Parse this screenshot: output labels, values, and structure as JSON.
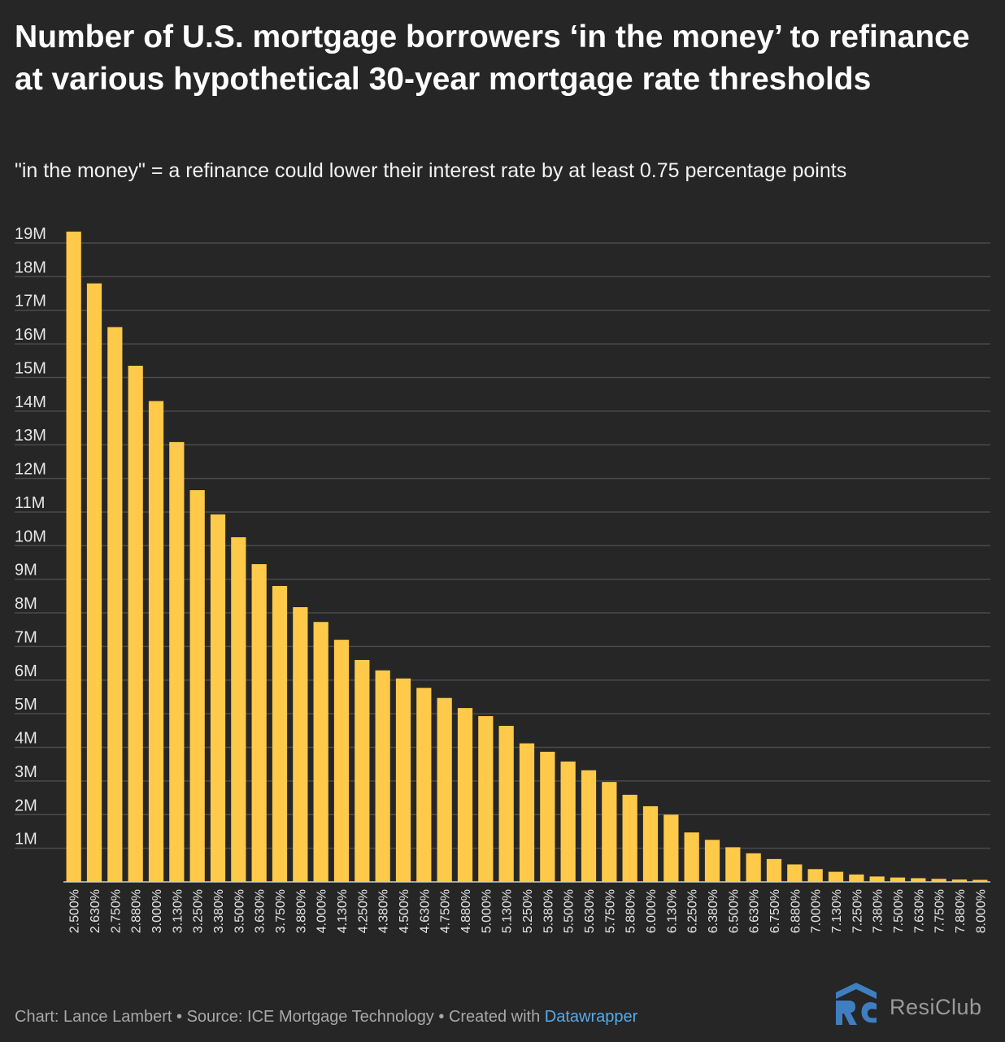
{
  "title": "Number of U.S. mortgage borrowers ‘in the money’ to refinance at various hypothetical 30-year mortgage rate thresholds",
  "subtitle": "\"in the money\" = a refinance could lower their interest rate by at least 0.75 percentage points",
  "colors": {
    "background": "#262626",
    "bar": "#ffc94a",
    "grid": "#4a4a4a",
    "axis_text": "#e6e6e6",
    "link": "#5aa9e6",
    "logo_blue": "#3f7fc1"
  },
  "chart_data": {
    "type": "bar",
    "title": "Number of U.S. mortgage borrowers ‘in the money’ to refinance at various hypothetical 30-year mortgage rate thresholds",
    "xlabel": "",
    "ylabel": "",
    "ylim": [
      0,
      19000000
    ],
    "y_ticks": [
      1000000,
      2000000,
      3000000,
      4000000,
      5000000,
      6000000,
      7000000,
      8000000,
      9000000,
      10000000,
      11000000,
      12000000,
      13000000,
      14000000,
      15000000,
      16000000,
      17000000,
      18000000,
      19000000
    ],
    "y_tick_labels": [
      "1M",
      "2M",
      "3M",
      "4M",
      "5M",
      "6M",
      "7M",
      "8M",
      "9M",
      "10M",
      "11M",
      "12M",
      "13M",
      "14M",
      "15M",
      "16M",
      "17M",
      "18M",
      "19M"
    ],
    "grid": true,
    "categories": [
      "2.500%",
      "2.630%",
      "2.750%",
      "2.880%",
      "3.000%",
      "3.130%",
      "3.250%",
      "3.380%",
      "3.500%",
      "3.630%",
      "3.750%",
      "3.880%",
      "4.000%",
      "4.130%",
      "4.250%",
      "4.380%",
      "4.500%",
      "4.630%",
      "4.750%",
      "4.880%",
      "5.000%",
      "5.130%",
      "5.250%",
      "5.380%",
      "5.500%",
      "5.630%",
      "5.750%",
      "5.880%",
      "6.000%",
      "6.130%",
      "6.250%",
      "6.380%",
      "6.500%",
      "6.630%",
      "6.750%",
      "6.880%",
      "7.000%",
      "7.130%",
      "7.250%",
      "7.380%",
      "7.500%",
      "7.630%",
      "7.750%",
      "7.880%",
      "8.000%"
    ],
    "values": [
      19340000,
      17800000,
      16500000,
      15350000,
      14300000,
      13080000,
      11650000,
      10930000,
      10250000,
      9450000,
      8800000,
      8170000,
      7730000,
      7200000,
      6600000,
      6290000,
      6050000,
      5770000,
      5470000,
      5170000,
      4930000,
      4640000,
      4120000,
      3870000,
      3580000,
      3320000,
      2970000,
      2590000,
      2250000,
      2000000,
      1470000,
      1250000,
      1030000,
      850000,
      680000,
      520000,
      380000,
      300000,
      220000,
      160000,
      130000,
      110000,
      90000,
      70000,
      60000
    ]
  },
  "footer": {
    "chart_credit": "Chart: Lance Lambert",
    "separator": " • ",
    "source": "Source: ICE Mortgage Technology",
    "created_with": "Created with ",
    "tool": "Datawrapper"
  },
  "logo": {
    "text": "ResiClub",
    "mark_text": "RC"
  }
}
